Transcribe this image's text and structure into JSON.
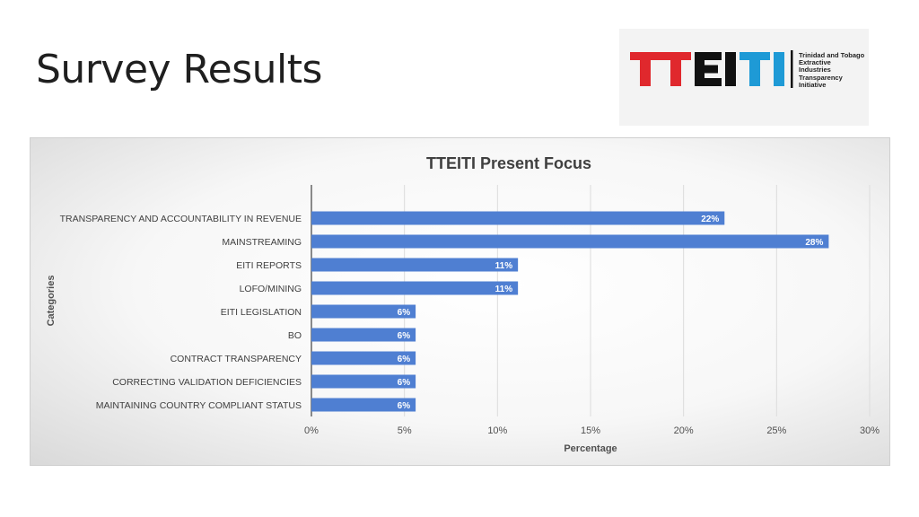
{
  "slide": {
    "title": "Survey Results"
  },
  "logo": {
    "wordmark": "TTEITI",
    "caption_lines": [
      "Trinidad and Tobago",
      "Extractive",
      "Industries",
      "Transparency",
      "Initiative"
    ],
    "colors": {
      "red": "#e0282d",
      "black": "#111111",
      "blue": "#1e9ad6"
    }
  },
  "chart_data": {
    "type": "bar",
    "orientation": "horizontal",
    "title": "TTEITI Present Focus",
    "xlabel": "Percentage",
    "ylabel": "Categories",
    "categories": [
      "TRANSPARENCY AND ACCOUNTABILITY IN REVENUE",
      "MAINSTREAMING",
      "EITI REPORTS",
      "LOFO/MINING",
      "EITI LEGISLATION",
      "BO",
      "CONTRACT TRANSPARENCY",
      "CORRECTING VALIDATION DEFICIENCIES",
      "MAINTAINING COUNTRY COMPLIANT STATUS"
    ],
    "values": [
      22.2,
      27.8,
      11.1,
      11.1,
      5.6,
      5.6,
      5.6,
      5.6,
      5.6
    ],
    "data_labels": [
      "22%",
      "28%",
      "11%",
      "11%",
      "6%",
      "6%",
      "6%",
      "6%",
      "6%"
    ],
    "xlim": [
      0,
      30
    ],
    "xticks": [
      "0%",
      "5%",
      "10%",
      "15%",
      "20%",
      "25%",
      "30%"
    ],
    "grid": true,
    "bar_color": "#4f7fd2",
    "label_color": "#ffffff"
  }
}
